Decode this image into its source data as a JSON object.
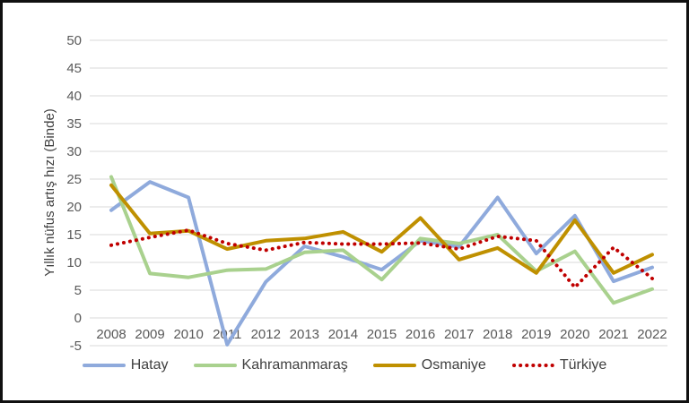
{
  "frame": {
    "background_color": "#FFFFFF",
    "border_color": "#111111"
  },
  "chart_data": {
    "type": "line",
    "title": "",
    "xlabel": "",
    "ylabel": "Yıllık nüfus artış hızı (Binde)",
    "ylim": [
      -5,
      50
    ],
    "ytick_step": 5,
    "y_ticks": [
      50,
      45,
      40,
      35,
      30,
      25,
      20,
      15,
      10,
      5,
      0,
      -5
    ],
    "categories": [
      "2008",
      "2009",
      "2010",
      "2011",
      "2012",
      "2013",
      "2014",
      "2015",
      "2016",
      "2017",
      "2018",
      "2019",
      "2020",
      "2021",
      "2022"
    ],
    "grid": true,
    "gridline_color": "#D9D9D9",
    "tick_label_color": "#595959",
    "axis_title_color": "#404040",
    "legend_position": "bottom",
    "series": [
      {
        "name": "Hatay",
        "color": "#8FAADC",
        "style": "solid",
        "values": [
          19.4,
          24.5,
          21.7,
          -4.8,
          6.5,
          12.9,
          11.0,
          8.7,
          13.9,
          12.8,
          21.7,
          11.6,
          18.4,
          6.6,
          9.1
        ]
      },
      {
        "name": "Kahramanmaraş",
        "color": "#A9D18E",
        "style": "solid",
        "values": [
          25.4,
          8.0,
          7.3,
          8.6,
          8.8,
          11.8,
          12.2,
          6.9,
          14.3,
          13.4,
          15.0,
          8.4,
          12.0,
          2.7,
          5.2
        ]
      },
      {
        "name": "Osmaniye",
        "color": "#BF9000",
        "style": "solid",
        "values": [
          23.9,
          15.2,
          15.7,
          12.4,
          13.9,
          14.3,
          15.5,
          11.9,
          18.0,
          10.5,
          12.6,
          8.1,
          17.6,
          8.1,
          11.4
        ]
      },
      {
        "name": "Türkiye",
        "color": "#C00000",
        "style": "dotted",
        "values": [
          13.1,
          14.5,
          15.8,
          13.4,
          12.2,
          13.6,
          13.3,
          13.3,
          13.5,
          12.4,
          14.7,
          13.9,
          5.5,
          12.7,
          7.1
        ]
      }
    ]
  }
}
